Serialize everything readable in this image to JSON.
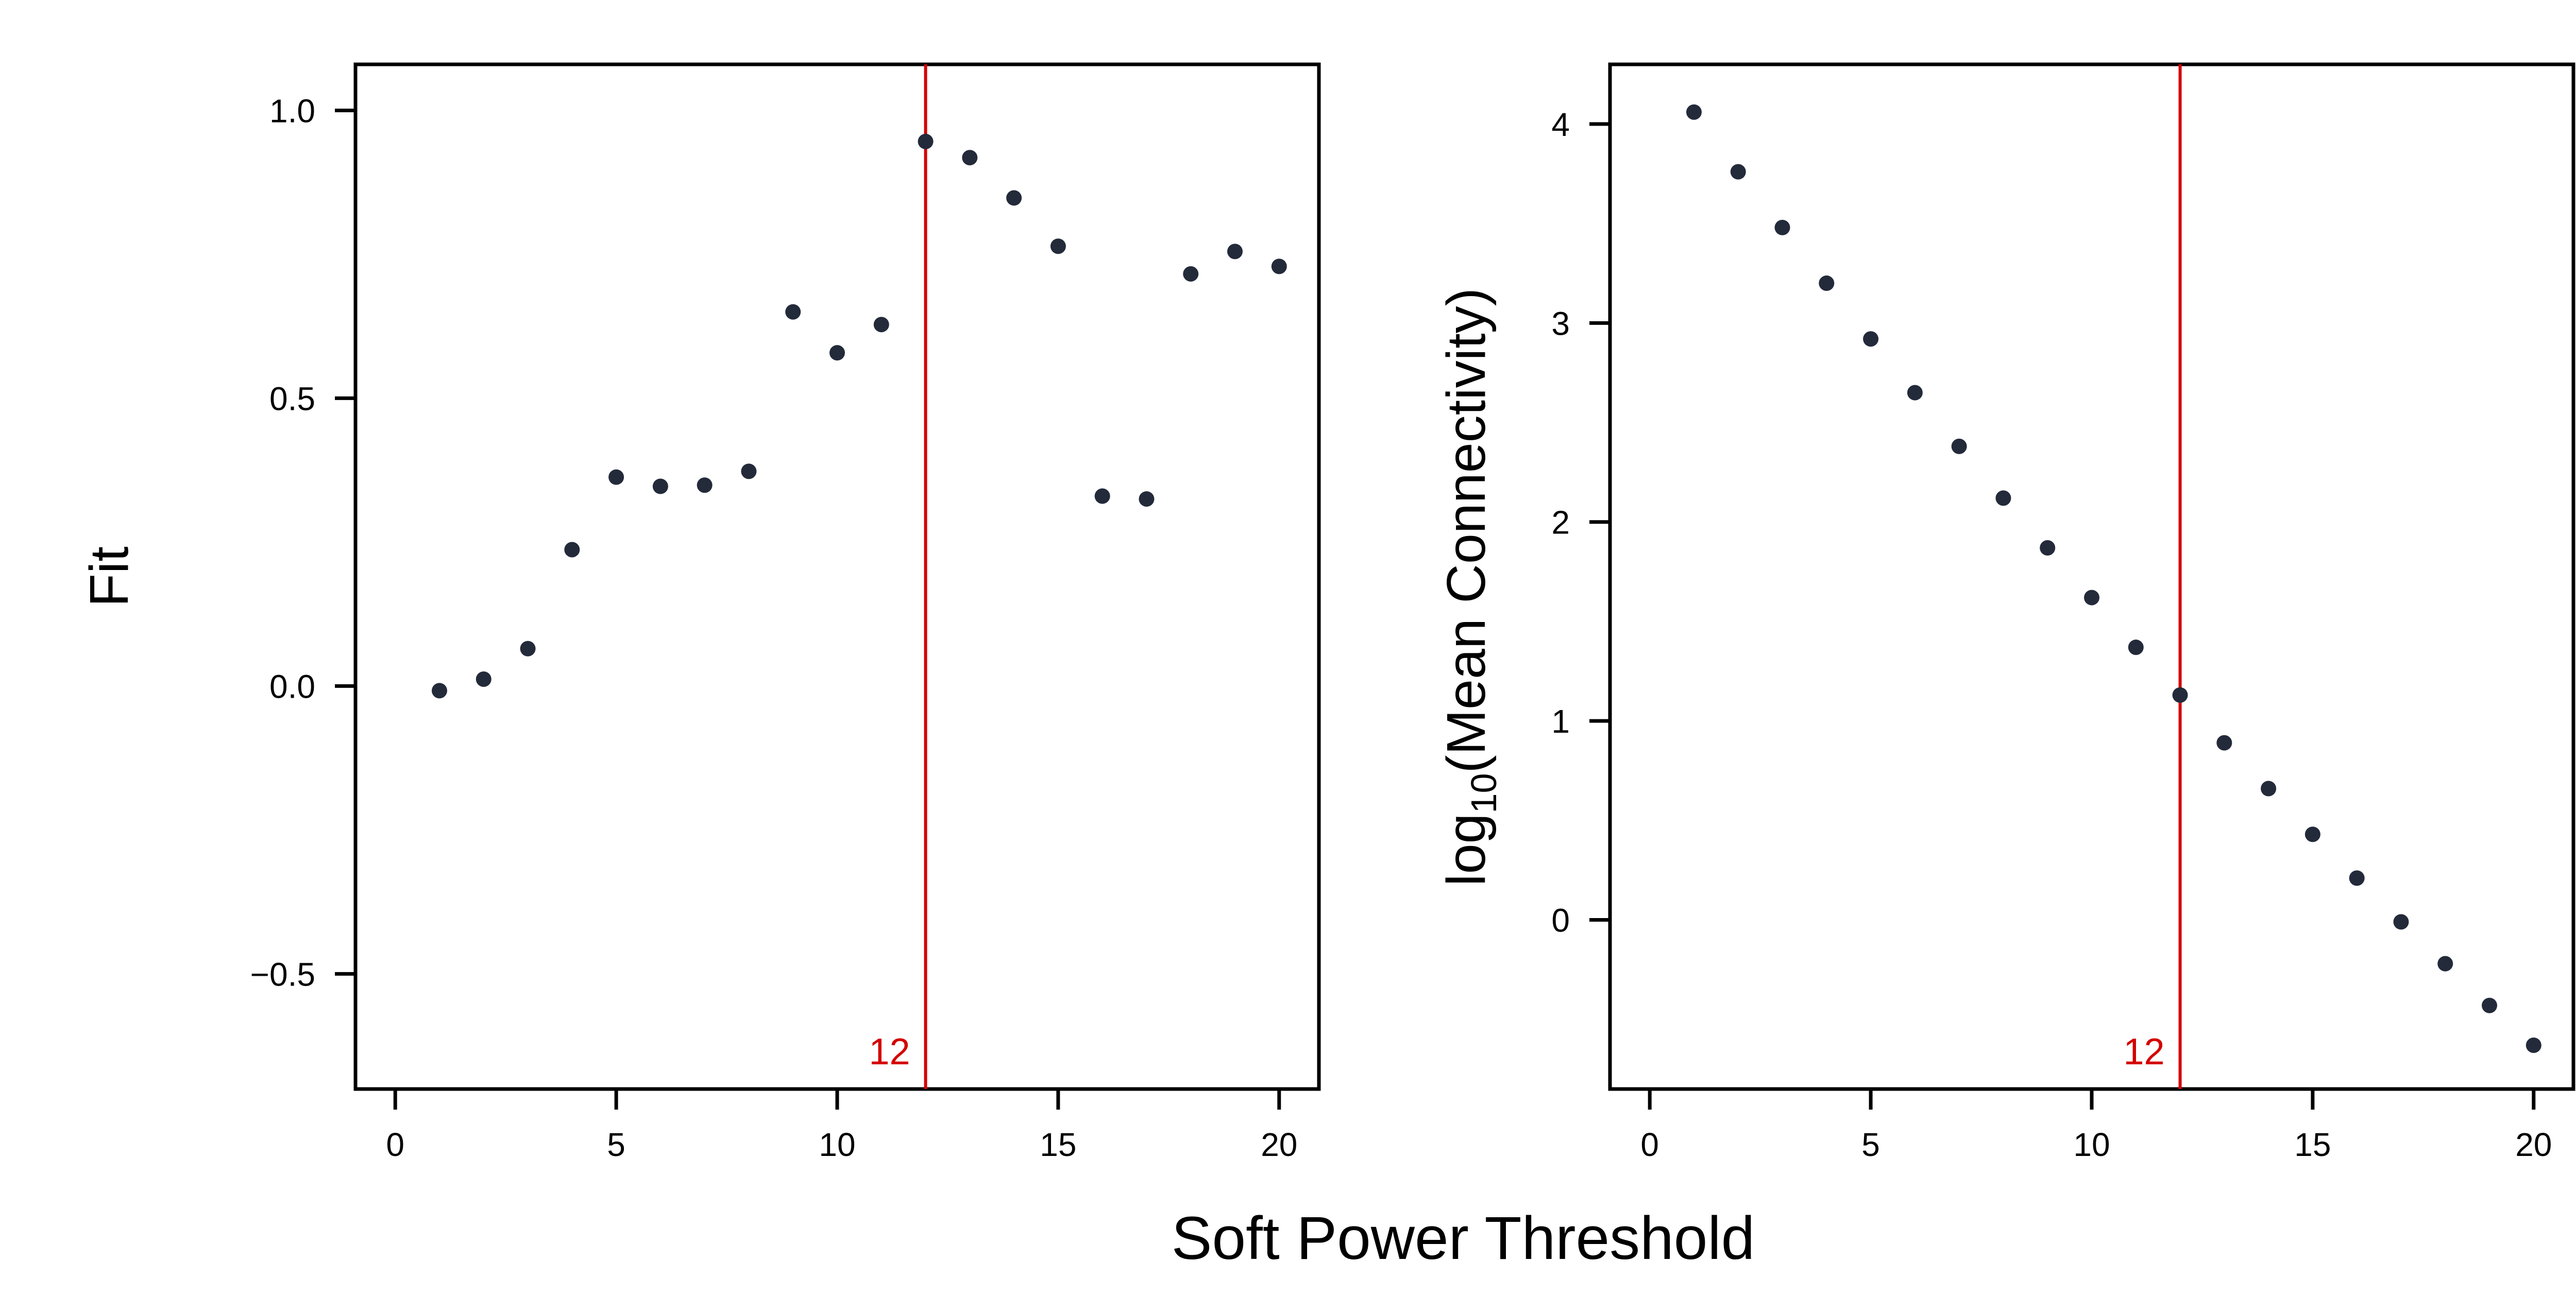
{
  "chart_data": [
    {
      "type": "scatter",
      "ylabel": "Fit",
      "xlim": [
        -0.9,
        20.9
      ],
      "ylim": [
        -0.7,
        1.08
      ],
      "xticks": [
        0,
        5,
        10,
        15,
        20
      ],
      "xtick_labels": [
        "0",
        "5",
        "10",
        "15",
        "20"
      ],
      "yticks": [
        -0.5,
        0.0,
        0.5,
        1.0
      ],
      "ytick_labels": [
        "−0.5",
        "0.0",
        "0.5",
        "1.0"
      ],
      "x": [
        1,
        2,
        3,
        4,
        5,
        6,
        7,
        8,
        9,
        10,
        11,
        12,
        13,
        14,
        15,
        16,
        17,
        18,
        19,
        20
      ],
      "y": [
        -0.008,
        0.012,
        0.065,
        0.237,
        0.363,
        0.347,
        0.349,
        0.373,
        0.65,
        0.579,
        0.628,
        0.946,
        0.918,
        0.848,
        0.764,
        0.33,
        0.325,
        0.716,
        0.755,
        0.729
      ],
      "vline": {
        "x": 12,
        "label": "12",
        "color": "#d40000"
      },
      "point_color": "#232a3a",
      "grid": false
    },
    {
      "type": "scatter",
      "ylabel_main": "log",
      "ylabel_sub": "10",
      "ylabel_rest": "(Mean Connectivity)",
      "xlim": [
        -0.9,
        20.9
      ],
      "ylim": [
        -0.85,
        4.3
      ],
      "xticks": [
        0,
        5,
        10,
        15,
        20
      ],
      "xtick_labels": [
        "0",
        "5",
        "10",
        "15",
        "20"
      ],
      "yticks": [
        0,
        1,
        2,
        3,
        4
      ],
      "ytick_labels": [
        "0",
        "1",
        "2",
        "3",
        "4"
      ],
      "x": [
        1,
        2,
        3,
        4,
        5,
        6,
        7,
        8,
        9,
        10,
        11,
        12,
        13,
        14,
        15,
        16,
        17,
        18,
        19,
        20
      ],
      "y": [
        4.06,
        3.76,
        3.48,
        3.2,
        2.92,
        2.65,
        2.38,
        2.12,
        1.87,
        1.62,
        1.37,
        1.13,
        0.89,
        0.66,
        0.43,
        0.21,
        -0.01,
        -0.22,
        -0.43,
        -0.63
      ],
      "vline": {
        "x": 12,
        "label": "12",
        "color": "#d40000"
      },
      "point_color": "#232a3a",
      "grid": false
    }
  ],
  "xlabel": "Soft Power Threshold"
}
